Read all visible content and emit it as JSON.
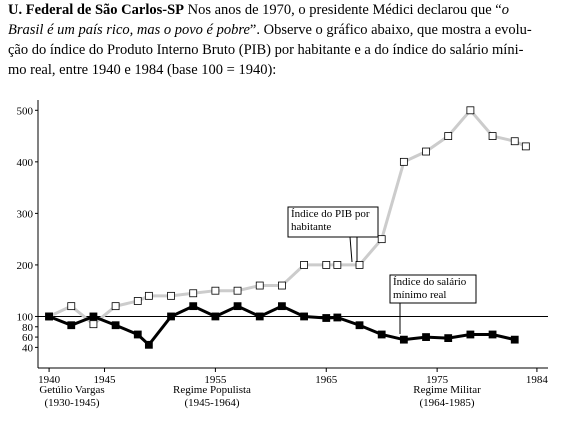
{
  "question": {
    "lines": [
      [
        {
          "text": "U. Federal de São Carlos-SP",
          "style": "bold"
        },
        {
          "text": " Nos anos de 1970, o presidente Médici declarou que “",
          "style": "normal"
        },
        {
          "text": "o",
          "style": "italic"
        }
      ],
      [
        {
          "text": "Brasil é um país rico, mas o povo é pobre",
          "style": "italic"
        },
        {
          "text": "”. Observe o gráfico abaixo, que mostra a evolu-",
          "style": "normal"
        }
      ],
      [
        {
          "text": "ção do índice do Produto Interno Bruto (PIB) por habitante e a do índice do salário míni-",
          "style": "normal"
        }
      ],
      [
        {
          "text": "mo real, entre 1940 e 1984 (base 100 = 1940):",
          "style": "normal"
        }
      ]
    ]
  },
  "chart_data": {
    "type": "line",
    "x": [
      1940,
      1942,
      1944,
      1946,
      1948,
      1949,
      1951,
      1953,
      1955,
      1957,
      1959,
      1961,
      1963,
      1965,
      1966,
      1968,
      1970,
      1972,
      1974,
      1976,
      1978,
      1980,
      1982,
      1983
    ],
    "series": [
      {
        "name": "Índice do PIB por habitante",
        "color": "#cccccc",
        "marker_fill": "#ffffff",
        "values": [
          100,
          120,
          85,
          120,
          130,
          140,
          140,
          145,
          150,
          150,
          160,
          160,
          200,
          200,
          200,
          200,
          250,
          400,
          420,
          450,
          500,
          450,
          440,
          430
        ]
      },
      {
        "name": "Índice do salário mínimo real",
        "color": "#000000",
        "marker_fill": "#000000",
        "values": [
          100,
          83,
          100,
          83,
          65,
          45,
          100,
          120,
          100,
          120,
          100,
          120,
          100,
          97,
          98,
          83,
          65,
          55,
          60,
          58,
          65,
          65,
          55,
          null
        ]
      }
    ],
    "xlim": [
      1939,
      1985
    ],
    "xticks": [
      1940,
      1945,
      1955,
      1965,
      1975,
      1984
    ],
    "ylim": [
      0,
      520
    ],
    "yticks": [
      40,
      60,
      80,
      100,
      200,
      300,
      400,
      500
    ],
    "reference_line": 100,
    "periods": [
      {
        "name": "Getúlio Vargas",
        "span": "(1930-1945)"
      },
      {
        "name": "Regime Populista",
        "span": "(1945-1964)"
      },
      {
        "name": "Regime Militar",
        "span": "(1964-1985)"
      }
    ]
  }
}
